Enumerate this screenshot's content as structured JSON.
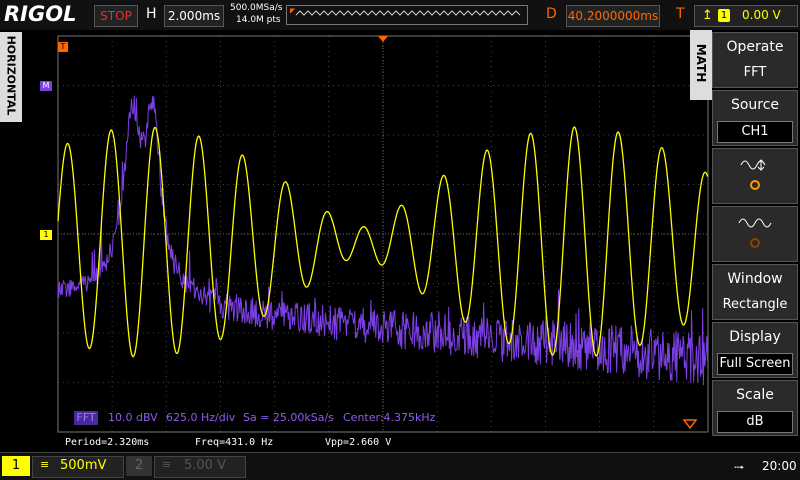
{
  "top_bar": {
    "brand": "RIGOL",
    "status": "STOP",
    "timebase_label": "H",
    "timebase": "2.000ms",
    "sample_rate": "500.0MSa/s",
    "memory_depth": "14.0M pts",
    "delay_label": "D",
    "delay": "40.2000000ms",
    "trigger_label": "T",
    "trigger_source": "1",
    "trigger_level": "0.00 V"
  },
  "side_tab": "HORIZONTAL",
  "markers": {
    "trigger": "T",
    "math": "M",
    "channel": "1"
  },
  "menu": {
    "title": "MATH",
    "items": [
      {
        "label": "Operate",
        "value": "FFT"
      },
      {
        "label": "Source",
        "value": "CH1"
      },
      {
        "label": "Window",
        "value": "Rectangle"
      },
      {
        "label": "Display",
        "value": "Full Screen"
      },
      {
        "label": "Scale",
        "value": "dB"
      }
    ]
  },
  "fft_info": [
    "FFT",
    "10.0 dBV",
    "625.0 Hz/div",
    "Sa = 25.00kSa/s",
    "Center:4.375kHz"
  ],
  "measurements": [
    "Period=2.320ms",
    "Freq=431.0 Hz",
    "Vpp=2.660 V"
  ],
  "bottom_bar": {
    "ch1": "1",
    "ch1_scale": "500mV",
    "ch2": "2",
    "ch2_scale": "5.00 V",
    "time": "20:00"
  }
}
